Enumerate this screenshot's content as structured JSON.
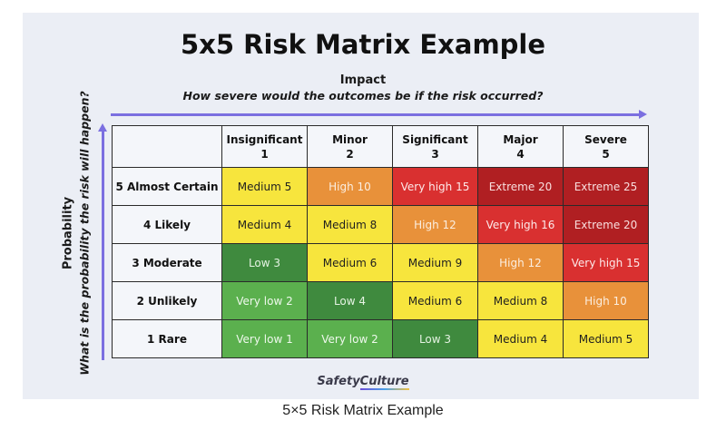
{
  "title": "5x5 Risk Matrix Example",
  "impact_axis": {
    "label": "Impact",
    "subtitle": "How severe would the outcomes be if the risk occurred?"
  },
  "probability_axis": {
    "label": "Probability",
    "subtitle": "What is the probability the risk will happen?"
  },
  "columns": [
    {
      "name": "Insignificant",
      "score": "1"
    },
    {
      "name": "Minor",
      "score": "2"
    },
    {
      "name": "Significant",
      "score": "3"
    },
    {
      "name": "Major",
      "score": "4"
    },
    {
      "name": "Severe",
      "score": "5"
    }
  ],
  "rows": [
    {
      "label": "5 Almost Certain",
      "cells": [
        {
          "text": "Medium 5",
          "level": "medium"
        },
        {
          "text": "High 10",
          "level": "high"
        },
        {
          "text": "Very high 15",
          "level": "veryhigh"
        },
        {
          "text": "Extreme 20",
          "level": "extreme"
        },
        {
          "text": "Extreme 25",
          "level": "extreme"
        }
      ]
    },
    {
      "label": "4 Likely",
      "cells": [
        {
          "text": "Medium 4",
          "level": "medium"
        },
        {
          "text": "Medium 8",
          "level": "medium"
        },
        {
          "text": "High 12",
          "level": "high"
        },
        {
          "text": "Very high 16",
          "level": "veryhigh"
        },
        {
          "text": "Extreme 20",
          "level": "extreme"
        }
      ]
    },
    {
      "label": "3 Moderate",
      "cells": [
        {
          "text": "Low 3",
          "level": "low"
        },
        {
          "text": "Medium 6",
          "level": "medium"
        },
        {
          "text": "Medium 9",
          "level": "medium"
        },
        {
          "text": "High 12",
          "level": "high"
        },
        {
          "text": "Very high 15",
          "level": "veryhigh"
        }
      ]
    },
    {
      "label": "2 Unlikely",
      "cells": [
        {
          "text": "Very low 2",
          "level": "verylow"
        },
        {
          "text": "Low 4",
          "level": "low"
        },
        {
          "text": "Medium 6",
          "level": "medium"
        },
        {
          "text": "Medium 8",
          "level": "medium"
        },
        {
          "text": "High 10",
          "level": "high"
        }
      ]
    },
    {
      "label": "1 Rare",
      "cells": [
        {
          "text": "Very low 1",
          "level": "verylow"
        },
        {
          "text": "Very low 2",
          "level": "verylow"
        },
        {
          "text": "Low 3",
          "level": "low"
        },
        {
          "text": "Medium 4",
          "level": "medium"
        },
        {
          "text": "Medium 5",
          "level": "medium"
        }
      ]
    }
  ],
  "level_colors": {
    "verylow": "#5bb04e",
    "low": "#3f8a3e",
    "medium": "#f7e53d",
    "high": "#e8913a",
    "veryhigh": "#d93030",
    "extreme": "#b01f22"
  },
  "axis_arrow_color": "#7b6fe0",
  "logo": {
    "part1": "Safety",
    "part2": "Culture"
  },
  "caption": "5×5 Risk Matrix Example"
}
